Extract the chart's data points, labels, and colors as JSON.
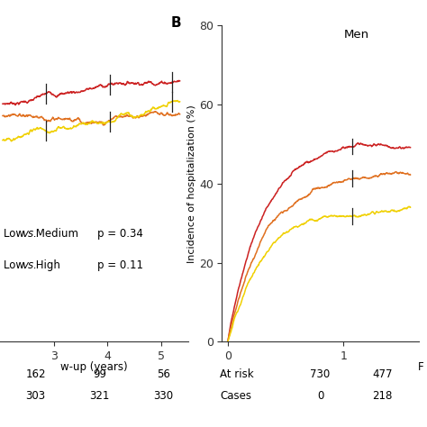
{
  "panel_label": "B",
  "panel_title": "Men",
  "ylabel": "Incidence of hospitalization (%)",
  "ylim": [
    0,
    80
  ],
  "yticks": [
    0,
    20,
    40,
    60,
    80
  ],
  "xlim_left": [
    2.0,
    5.5
  ],
  "xticks_left": [
    3,
    4,
    5
  ],
  "xlim_right": [
    -0.05,
    1.65
  ],
  "xticks_right": [
    0,
    1
  ],
  "colors": {
    "high": "#cc2222",
    "medium": "#e07020",
    "low": "#f0d000"
  },
  "left_at_risk_row1": [
    "162",
    "99",
    "56"
  ],
  "left_at_risk_row2": [
    "303",
    "321",
    "330"
  ],
  "right_col1": [
    "730",
    "0"
  ],
  "right_col2": [
    "477",
    "218"
  ],
  "background_color": "#ffffff",
  "font_size": 9,
  "panel_label_fontsize": 11
}
